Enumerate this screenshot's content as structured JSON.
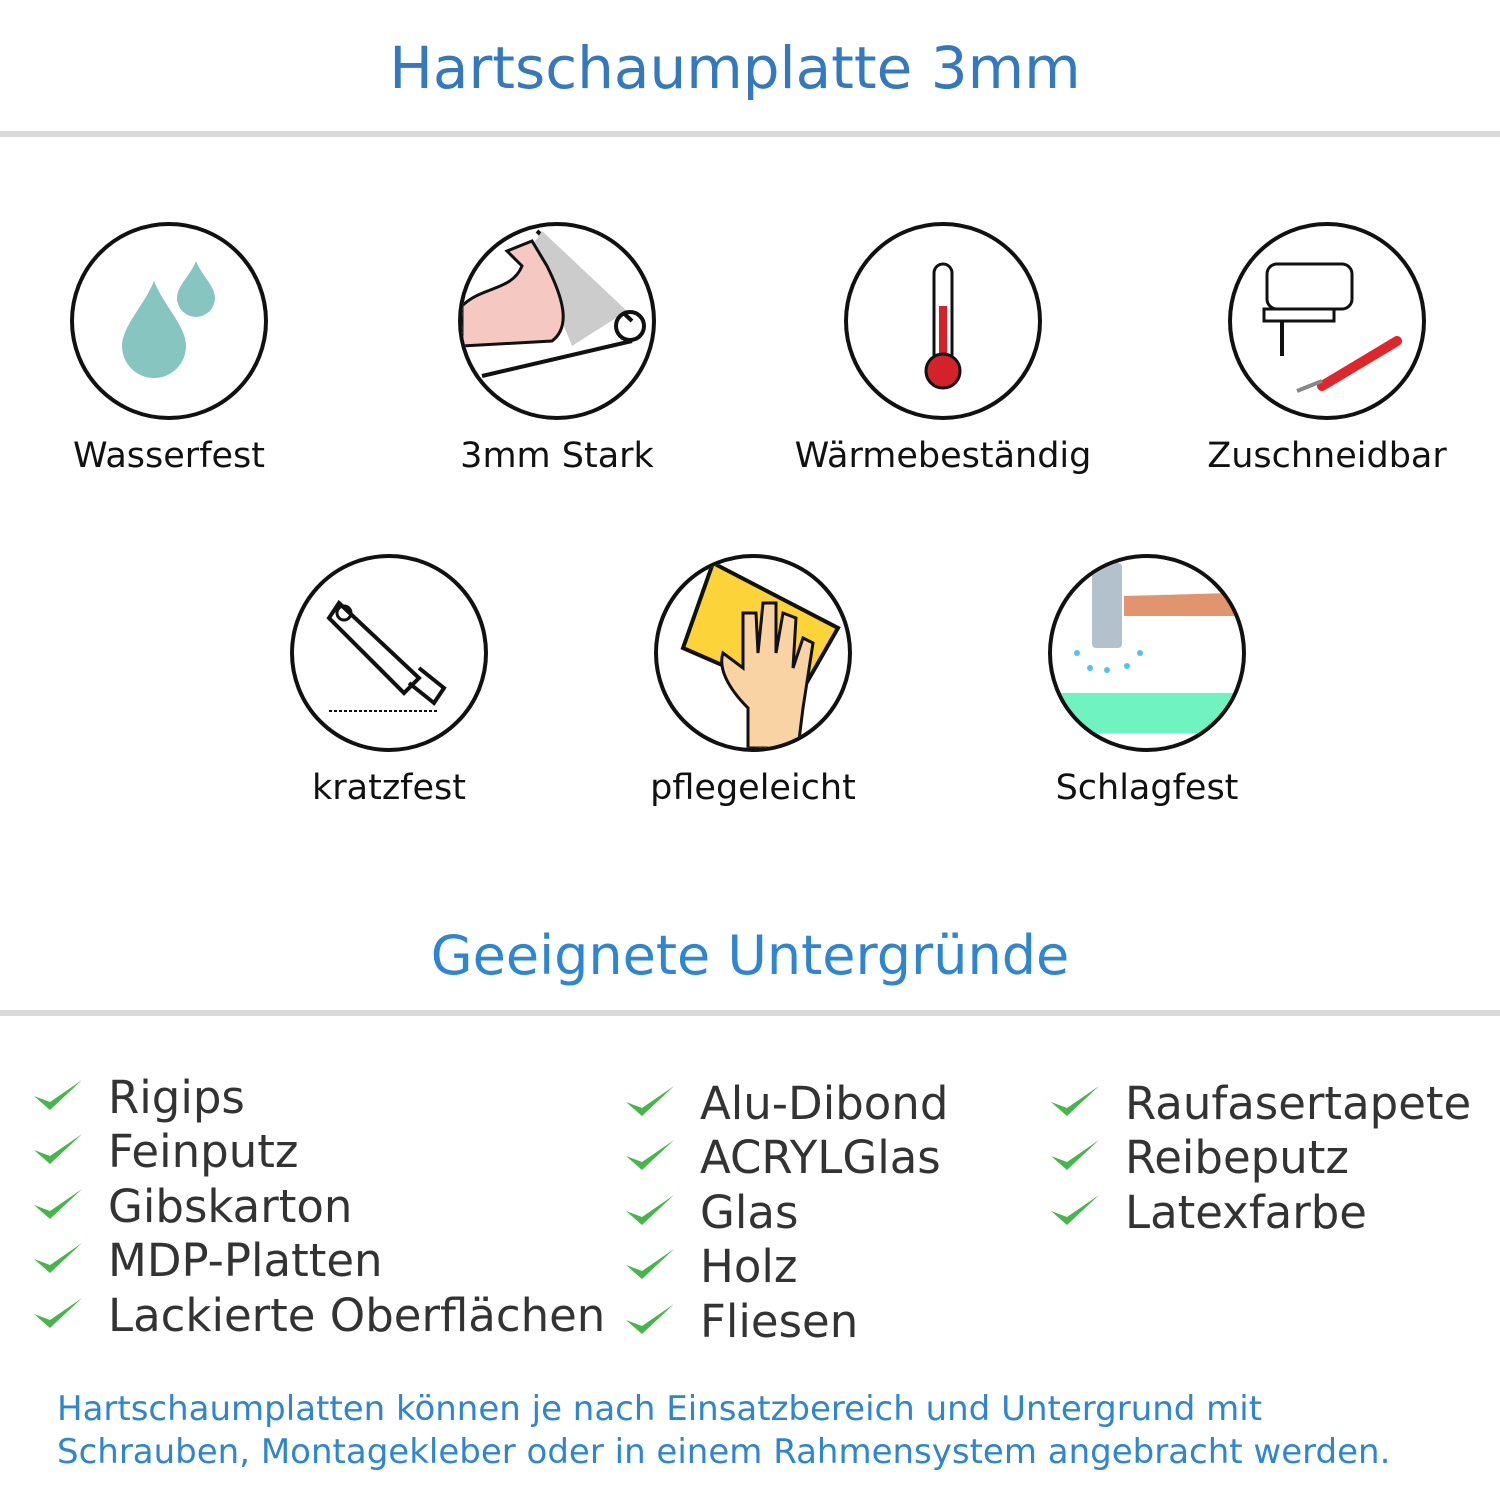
{
  "header": {
    "title": "Hartschaumplatte 3mm"
  },
  "features": [
    {
      "label": "Wasserfest",
      "icon": "water-drops-icon"
    },
    {
      "label": "3mm Stark",
      "icon": "strong-arm-icon"
    },
    {
      "label": "Wärmebeständig",
      "icon": "thermometer-icon"
    },
    {
      "label": "Zuschneidbar",
      "icon": "jigsaw-icon"
    },
    {
      "label": "kratzfest",
      "icon": "cutter-knife-icon"
    },
    {
      "label": "pflegeleicht",
      "icon": "cleaning-hand-icon"
    },
    {
      "label": "Schlagfest",
      "icon": "hammer-icon"
    }
  ],
  "surfaces": {
    "title": "Geeignete Untergründe",
    "columns": [
      [
        "Rigips",
        "Feinputz",
        "Gibskarton",
        "MDP-Platten",
        "Lackierte Oberflächen"
      ],
      [
        "Alu-Dibond",
        "ACRYLGlas",
        "Glas",
        "Holz",
        "Fliesen"
      ],
      [
        "Raufasertapete",
        "Reibeputz",
        "Latexfarbe"
      ]
    ]
  },
  "footer": {
    "line1": "Hartschaumplatten können je nach Einsatzbereich und Untergrund mit",
    "line2": "Schrauben, Montagekleber oder in einem Rahmensystem angebracht werden."
  },
  "colors": {
    "title": "#3479bd",
    "subtitle": "#2e86d0",
    "check": "#45b649",
    "text": "#333333",
    "divider": "#dadada"
  }
}
